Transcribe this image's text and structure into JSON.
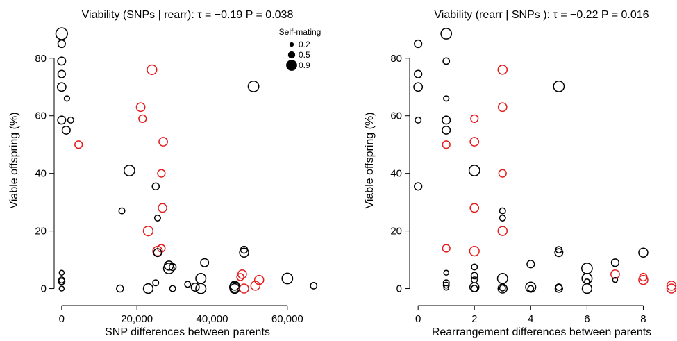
{
  "chart_data": [
    {
      "type": "scatter",
      "title": "Viability (SNPs | rearr): τ = −0.19 P = 0.038",
      "xlabel": "SNP differences between parents",
      "ylabel": "Viable offspring (%)",
      "xlim": [
        -2000,
        70000
      ],
      "ylim": [
        -3,
        92
      ],
      "xticks": [
        0,
        20000,
        40000,
        60000
      ],
      "xtick_labels": [
        "0",
        "20,000",
        "40,000",
        "60,000"
      ],
      "yticks": [
        0,
        20,
        40,
        60,
        80
      ],
      "ytick_labels": [
        "0",
        "20",
        "40",
        "60",
        "80"
      ],
      "legend": {
        "title": "Self-mating",
        "placement": "top-right",
        "entries": [
          {
            "label": "0.2",
            "size": 0.2
          },
          {
            "label": "0.5",
            "size": 0.5
          },
          {
            "label": "0.9",
            "size": 0.9
          }
        ]
      },
      "colors": {
        "black": "#000000",
        "red": "#e41a1c"
      },
      "points": [
        {
          "x": 0,
          "y": 88.5,
          "size": 0.85,
          "color": "black"
        },
        {
          "x": 0,
          "y": 85,
          "size": 0.45,
          "color": "black"
        },
        {
          "x": 0,
          "y": 79,
          "size": 0.5,
          "color": "black"
        },
        {
          "x": 0,
          "y": 74.5,
          "size": 0.45,
          "color": "black"
        },
        {
          "x": 0,
          "y": 70,
          "size": 0.55,
          "color": "black"
        },
        {
          "x": 0,
          "y": 58.5,
          "size": 0.5,
          "color": "black"
        },
        {
          "x": 1400,
          "y": 66,
          "size": 0.25,
          "color": "black"
        },
        {
          "x": 2400,
          "y": 58.5,
          "size": 0.3,
          "color": "black"
        },
        {
          "x": 1200,
          "y": 55,
          "size": 0.5,
          "color": "black"
        },
        {
          "x": 4500,
          "y": 50,
          "size": 0.45,
          "color": "red"
        },
        {
          "x": 0,
          "y": 5.5,
          "size": 0.2,
          "color": "black"
        },
        {
          "x": 0,
          "y": 3,
          "size": 0.3,
          "color": "black"
        },
        {
          "x": 0,
          "y": 2.5,
          "size": 0.35,
          "color": "black"
        },
        {
          "x": 0,
          "y": 0,
          "size": 0.2,
          "color": "black"
        },
        {
          "x": 24000,
          "y": 76,
          "size": 0.65,
          "color": "red"
        },
        {
          "x": 21000,
          "y": 63,
          "size": 0.55,
          "color": "red"
        },
        {
          "x": 21500,
          "y": 59,
          "size": 0.45,
          "color": "red"
        },
        {
          "x": 27000,
          "y": 51,
          "size": 0.55,
          "color": "red"
        },
        {
          "x": 18000,
          "y": 41,
          "size": 0.75,
          "color": "black"
        },
        {
          "x": 26500,
          "y": 40,
          "size": 0.45,
          "color": "red"
        },
        {
          "x": 25000,
          "y": 35.5,
          "size": 0.4,
          "color": "black"
        },
        {
          "x": 16000,
          "y": 27,
          "size": 0.3,
          "color": "black"
        },
        {
          "x": 26800,
          "y": 28,
          "size": 0.55,
          "color": "red"
        },
        {
          "x": 25500,
          "y": 24.5,
          "size": 0.3,
          "color": "black"
        },
        {
          "x": 23000,
          "y": 20,
          "size": 0.65,
          "color": "red"
        },
        {
          "x": 26500,
          "y": 14,
          "size": 0.45,
          "color": "red"
        },
        {
          "x": 25500,
          "y": 13,
          "size": 0.65,
          "color": "red"
        },
        {
          "x": 25500,
          "y": 12.5,
          "size": 0.5,
          "color": "black"
        },
        {
          "x": 28500,
          "y": 8,
          "size": 0.6,
          "color": "black"
        },
        {
          "x": 28500,
          "y": 7,
          "size": 0.75,
          "color": "black"
        },
        {
          "x": 29500,
          "y": 7.5,
          "size": 0.4,
          "color": "black"
        },
        {
          "x": 38000,
          "y": 9,
          "size": 0.5,
          "color": "black"
        },
        {
          "x": 37000,
          "y": 3.5,
          "size": 0.7,
          "color": "black"
        },
        {
          "x": 35500,
          "y": 0.5,
          "size": 0.5,
          "color": "black"
        },
        {
          "x": 37000,
          "y": 0,
          "size": 0.7,
          "color": "black"
        },
        {
          "x": 33500,
          "y": 1.5,
          "size": 0.3,
          "color": "black"
        },
        {
          "x": 25000,
          "y": 2,
          "size": 0.3,
          "color": "black"
        },
        {
          "x": 23000,
          "y": 0,
          "size": 0.65,
          "color": "black"
        },
        {
          "x": 29500,
          "y": 0,
          "size": 0.3,
          "color": "black"
        },
        {
          "x": 15500,
          "y": 0,
          "size": 0.4,
          "color": "black"
        },
        {
          "x": 51000,
          "y": 70.2,
          "size": 0.75,
          "color": "black"
        },
        {
          "x": 48500,
          "y": 13.5,
          "size": 0.4,
          "color": "black"
        },
        {
          "x": 48500,
          "y": 12.5,
          "size": 0.6,
          "color": "black"
        },
        {
          "x": 48000,
          "y": 5,
          "size": 0.55,
          "color": "red"
        },
        {
          "x": 47500,
          "y": 4,
          "size": 0.4,
          "color": "red"
        },
        {
          "x": 46000,
          "y": 1,
          "size": 0.6,
          "color": "black"
        },
        {
          "x": 46000,
          "y": 0.5,
          "size": 0.7,
          "color": "black"
        },
        {
          "x": 46000,
          "y": 0,
          "size": 0.65,
          "color": "black"
        },
        {
          "x": 48500,
          "y": 0,
          "size": 0.6,
          "color": "red"
        },
        {
          "x": 51500,
          "y": 1,
          "size": 0.6,
          "color": "red"
        },
        {
          "x": 52500,
          "y": 3,
          "size": 0.6,
          "color": "red"
        },
        {
          "x": 60000,
          "y": 3.5,
          "size": 0.75,
          "color": "black"
        },
        {
          "x": 67000,
          "y": 1,
          "size": 0.35,
          "color": "black"
        }
      ]
    },
    {
      "type": "scatter",
      "title": "Viability (rearr | SNPs ): τ = −0.22 P = 0.016",
      "xlabel": "Rearrangement differences between parents",
      "ylabel": "Viable offspring (%)",
      "xlim": [
        -0.3,
        9
      ],
      "ylim": [
        -3,
        92
      ],
      "xticks": [
        0,
        2,
        4,
        6,
        8
      ],
      "xtick_labels": [
        "0",
        "2",
        "4",
        "6",
        "8"
      ],
      "yticks": [
        0,
        20,
        40,
        60,
        80
      ],
      "ytick_labels": [
        "0",
        "20",
        "40",
        "60",
        "80"
      ],
      "colors": {
        "black": "#000000",
        "red": "#e41a1c"
      },
      "points": [
        {
          "x": 0,
          "y": 85,
          "size": 0.45,
          "color": "black"
        },
        {
          "x": 0,
          "y": 74.5,
          "size": 0.45,
          "color": "black"
        },
        {
          "x": 0,
          "y": 70,
          "size": 0.55,
          "color": "black"
        },
        {
          "x": 0,
          "y": 58.5,
          "size": 0.3,
          "color": "black"
        },
        {
          "x": 0,
          "y": 35.5,
          "size": 0.45,
          "color": "black"
        },
        {
          "x": 1,
          "y": 88.5,
          "size": 0.75,
          "color": "black"
        },
        {
          "x": 1,
          "y": 79,
          "size": 0.35,
          "color": "black"
        },
        {
          "x": 1,
          "y": 66,
          "size": 0.25,
          "color": "black"
        },
        {
          "x": 1,
          "y": 58.5,
          "size": 0.5,
          "color": "black"
        },
        {
          "x": 1,
          "y": 55,
          "size": 0.5,
          "color": "black"
        },
        {
          "x": 1,
          "y": 50,
          "size": 0.45,
          "color": "red"
        },
        {
          "x": 1,
          "y": 14,
          "size": 0.45,
          "color": "red"
        },
        {
          "x": 1,
          "y": 5.5,
          "size": 0.2,
          "color": "black"
        },
        {
          "x": 1,
          "y": 2,
          "size": 0.3,
          "color": "black"
        },
        {
          "x": 1,
          "y": 1.2,
          "size": 0.3,
          "color": "black"
        },
        {
          "x": 1,
          "y": 0.3,
          "size": 0.2,
          "color": "black"
        },
        {
          "x": 2,
          "y": 59,
          "size": 0.45,
          "color": "red"
        },
        {
          "x": 2,
          "y": 51,
          "size": 0.55,
          "color": "red"
        },
        {
          "x": 2,
          "y": 41,
          "size": 0.75,
          "color": "black"
        },
        {
          "x": 2,
          "y": 28,
          "size": 0.55,
          "color": "red"
        },
        {
          "x": 2,
          "y": 13,
          "size": 0.65,
          "color": "red"
        },
        {
          "x": 2,
          "y": 7.5,
          "size": 0.3,
          "color": "black"
        },
        {
          "x": 2,
          "y": 4.5,
          "size": 0.35,
          "color": "black"
        },
        {
          "x": 2,
          "y": 3,
          "size": 0.3,
          "color": "black"
        },
        {
          "x": 2,
          "y": 0.5,
          "size": 0.6,
          "color": "black"
        },
        {
          "x": 2,
          "y": 0,
          "size": 0.35,
          "color": "black"
        },
        {
          "x": 3,
          "y": 76,
          "size": 0.6,
          "color": "red"
        },
        {
          "x": 3,
          "y": 63,
          "size": 0.55,
          "color": "red"
        },
        {
          "x": 3,
          "y": 40,
          "size": 0.45,
          "color": "red"
        },
        {
          "x": 3,
          "y": 27,
          "size": 0.3,
          "color": "black"
        },
        {
          "x": 3,
          "y": 24.5,
          "size": 0.3,
          "color": "black"
        },
        {
          "x": 3,
          "y": 20,
          "size": 0.6,
          "color": "red"
        },
        {
          "x": 3,
          "y": 3.5,
          "size": 0.7,
          "color": "black"
        },
        {
          "x": 3,
          "y": 0,
          "size": 0.6,
          "color": "black"
        },
        {
          "x": 3,
          "y": 0.2,
          "size": 0.3,
          "color": "black"
        },
        {
          "x": 4,
          "y": 8.5,
          "size": 0.45,
          "color": "black"
        },
        {
          "x": 4,
          "y": 0.5,
          "size": 0.7,
          "color": "black"
        },
        {
          "x": 4,
          "y": 0,
          "size": 0.3,
          "color": "black"
        },
        {
          "x": 5,
          "y": 70.2,
          "size": 0.75,
          "color": "black"
        },
        {
          "x": 5,
          "y": 13.5,
          "size": 0.35,
          "color": "black"
        },
        {
          "x": 5,
          "y": 12.5,
          "size": 0.5,
          "color": "black"
        },
        {
          "x": 5,
          "y": 0.5,
          "size": 0.35,
          "color": "black"
        },
        {
          "x": 5,
          "y": 0,
          "size": 0.45,
          "color": "black"
        },
        {
          "x": 6,
          "y": 7,
          "size": 0.75,
          "color": "black"
        },
        {
          "x": 6,
          "y": 3.5,
          "size": 0.7,
          "color": "black"
        },
        {
          "x": 6,
          "y": 2.5,
          "size": 0.2,
          "color": "black"
        },
        {
          "x": 6,
          "y": 0,
          "size": 0.65,
          "color": "black"
        },
        {
          "x": 7,
          "y": 9,
          "size": 0.45,
          "color": "black"
        },
        {
          "x": 7,
          "y": 5,
          "size": 0.55,
          "color": "red"
        },
        {
          "x": 7,
          "y": 3,
          "size": 0.2,
          "color": "black"
        },
        {
          "x": 8,
          "y": 12.5,
          "size": 0.6,
          "color": "black"
        },
        {
          "x": 8,
          "y": 4,
          "size": 0.45,
          "color": "red"
        },
        {
          "x": 8,
          "y": 3,
          "size": 0.6,
          "color": "red"
        },
        {
          "x": 9,
          "y": 1,
          "size": 0.6,
          "color": "red"
        },
        {
          "x": 9,
          "y": 0,
          "size": 0.6,
          "color": "red"
        }
      ]
    }
  ]
}
